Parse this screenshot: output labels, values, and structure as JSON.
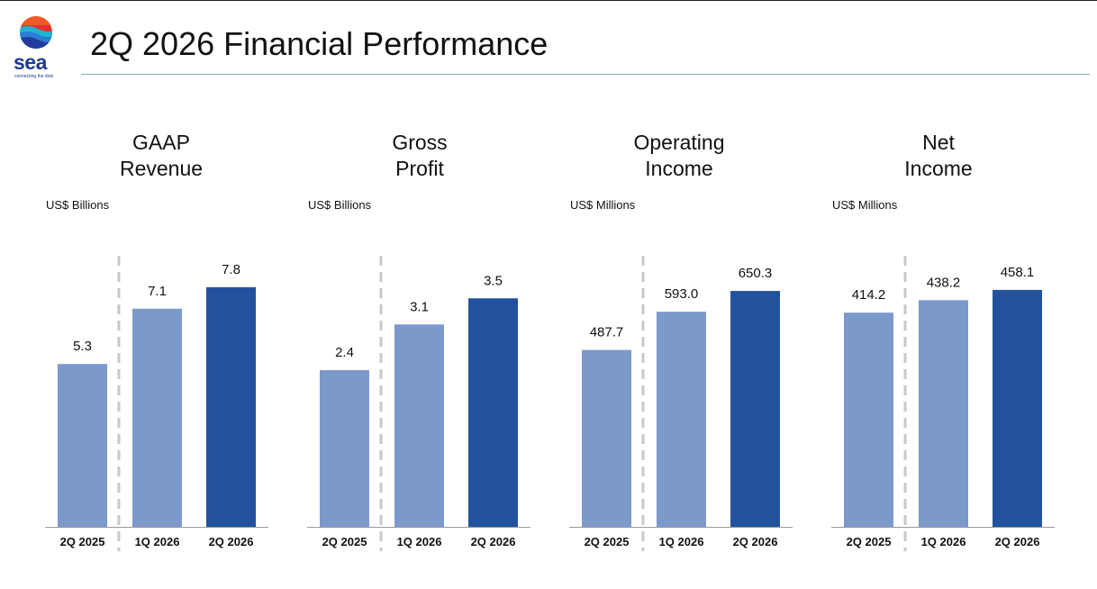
{
  "header": {
    "title": "2Q 2026 Financial Performance",
    "logo_text": "sea",
    "logo_tagline": "connecting the dots"
  },
  "colors": {
    "bar_light": "#7b9acb",
    "bar_dark": "#22529d",
    "divider": "#c8c8c8",
    "baseline": "#9a9a9a"
  },
  "chart_data": [
    {
      "type": "bar",
      "title": "GAAP Revenue",
      "title_lines": [
        "GAAP",
        "Revenue"
      ],
      "unit": "US$ Billions",
      "categories": [
        "2Q 2025",
        "1Q 2026",
        "2Q 2026"
      ],
      "values": [
        5.3,
        7.1,
        7.8
      ],
      "labels": [
        "5.3",
        "7.1",
        "7.8"
      ],
      "ylim": [
        0,
        8.5
      ]
    },
    {
      "type": "bar",
      "title": "Gross Profit",
      "title_lines": [
        "Gross",
        "Profit"
      ],
      "unit": "US$ Billions",
      "categories": [
        "2Q 2025",
        "1Q 2026",
        "2Q 2026"
      ],
      "values": [
        2.4,
        3.1,
        3.5
      ],
      "labels": [
        "2.4",
        "3.1",
        "3.5"
      ],
      "ylim": [
        0,
        4.0
      ]
    },
    {
      "type": "bar",
      "title": "Operating Income",
      "title_lines": [
        "Operating",
        "Income"
      ],
      "unit": "US$ Millions",
      "categories": [
        "2Q 2025",
        "1Q 2026",
        "2Q 2026"
      ],
      "values": [
        487.7,
        593.0,
        650.3
      ],
      "labels": [
        "487.7",
        "593.0",
        "650.3"
      ],
      "ylim": [
        0,
        720
      ]
    },
    {
      "type": "bar",
      "title": "Net Income",
      "title_lines": [
        "Net",
        "Income"
      ],
      "unit": "US$ Millions",
      "categories": [
        "2Q 2025",
        "1Q 2026",
        "2Q 2026"
      ],
      "values": [
        414.2,
        438.2,
        458.1
      ],
      "labels": [
        "414.2",
        "438.2",
        "458.1"
      ],
      "ylim": [
        0,
        505
      ]
    }
  ]
}
